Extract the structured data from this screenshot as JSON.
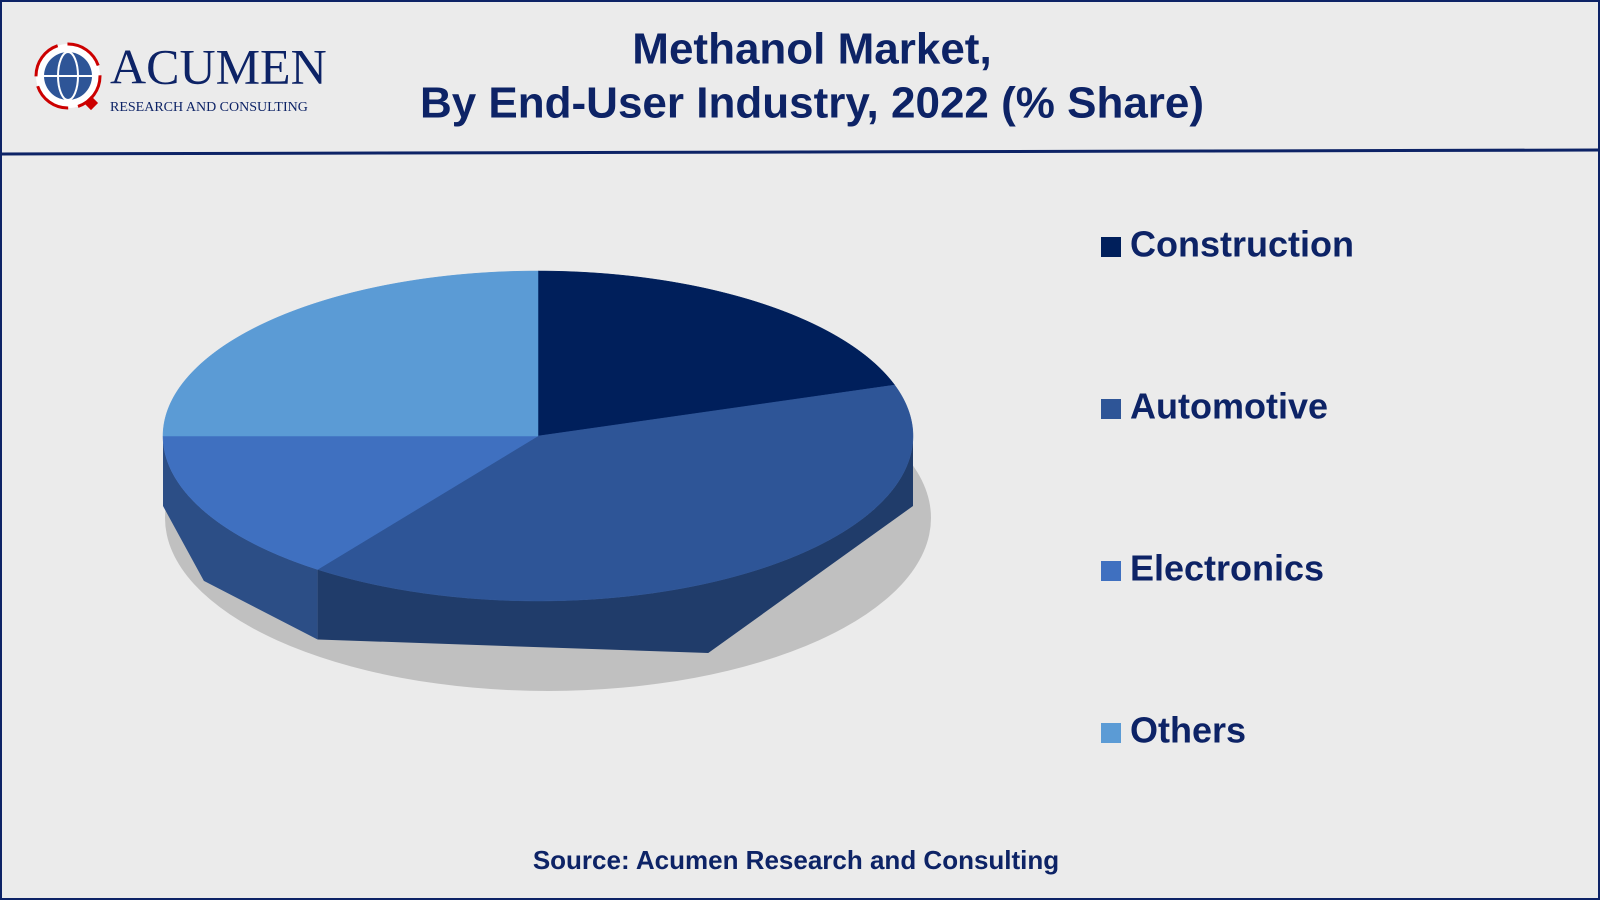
{
  "logo": {
    "name": "ACUMEN",
    "tagline": "RESEARCH AND CONSULTING"
  },
  "chart_data": {
    "type": "pie3d",
    "title": [
      "Methanol Market,",
      "By End-User Industry, 2022 (% Share)"
    ],
    "categories": [
      "Construction",
      "Automotive",
      "Electronics",
      "Others"
    ],
    "values": [
      20,
      40,
      15,
      25
    ],
    "colors": [
      "#001f5b",
      "#2e5597",
      "#3f70c0",
      "#5b9bd5"
    ],
    "legend": "right"
  },
  "source": "Source: Acumen Research and Consulting"
}
